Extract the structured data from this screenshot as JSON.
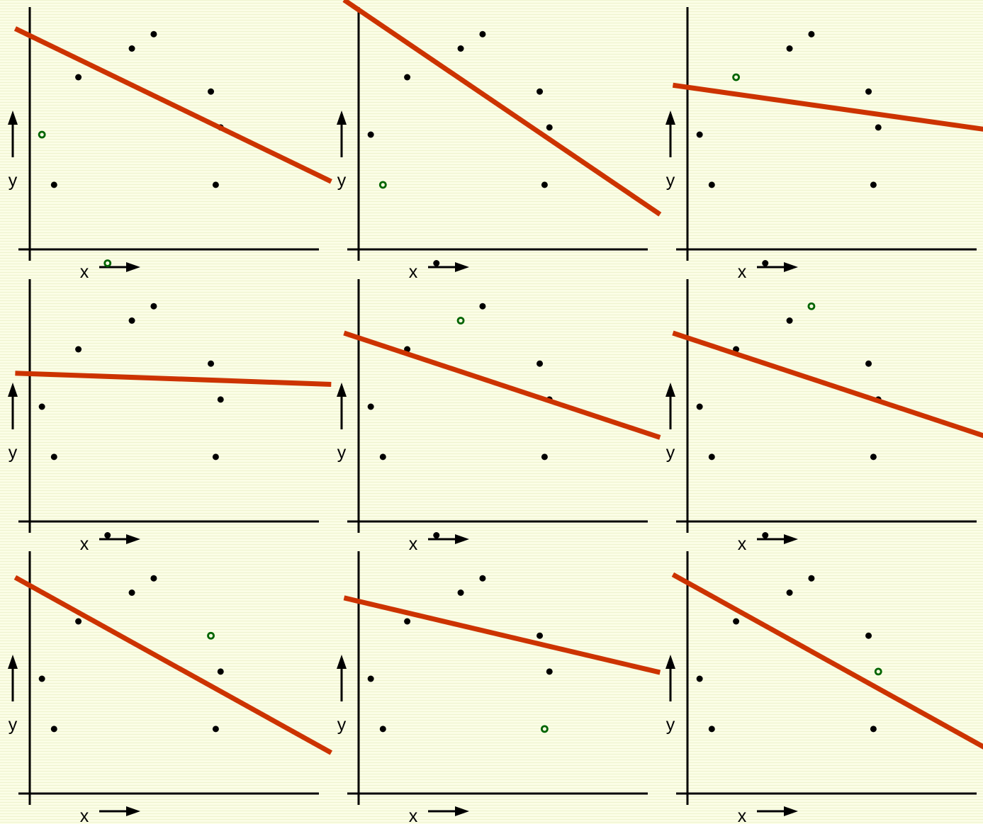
{
  "chart_data": {
    "type": "scatter",
    "axes": {
      "xlabel": "x",
      "ylabel": "y"
    },
    "colors": {
      "point": "#000000",
      "held_out_point": "#006400",
      "fit_line": "#cc3300",
      "axis": "#000000",
      "background": "#fbfde6"
    },
    "points": [
      {
        "x": 1.0,
        "y": 6.0
      },
      {
        "x": 2.0,
        "y": 2.5
      },
      {
        "x": 4.0,
        "y": 10.0
      },
      {
        "x": 6.4,
        "y": 16.0
      },
      {
        "x": 8.4,
        "y": 12.0
      },
      {
        "x": 10.2,
        "y": 13.0
      },
      {
        "x": 14.9,
        "y": 9.0
      },
      {
        "x": 15.3,
        "y": 2.5
      },
      {
        "x": 15.7,
        "y": 6.5
      }
    ],
    "panels": [
      {
        "held_out_index": 0,
        "line": {
          "slope": -0.41,
          "intercept": 12.9
        }
      },
      {
        "held_out_index": 1,
        "line": {
          "slope": -0.575,
          "intercept": 14.7
        }
      },
      {
        "held_out_index": 2,
        "line": {
          "slope": -0.12,
          "intercept": 9.3
        }
      },
      {
        "held_out_index": 3,
        "line": {
          "slope": -0.03,
          "intercept": 8.3
        }
      },
      {
        "held_out_index": 4,
        "line": {
          "slope": -0.28,
          "intercept": 10.8
        }
      },
      {
        "held_out_index": 5,
        "line": {
          "slope": -0.28,
          "intercept": 10.8
        }
      },
      {
        "held_out_index": 6,
        "line": {
          "slope": -0.47,
          "intercept": 12.5
        }
      },
      {
        "held_out_index": 7,
        "line": {
          "slope": -0.2,
          "intercept": 11.4
        }
      },
      {
        "held_out_index": 8,
        "line": {
          "slope": -0.47,
          "intercept": 12.7
        }
      }
    ]
  }
}
